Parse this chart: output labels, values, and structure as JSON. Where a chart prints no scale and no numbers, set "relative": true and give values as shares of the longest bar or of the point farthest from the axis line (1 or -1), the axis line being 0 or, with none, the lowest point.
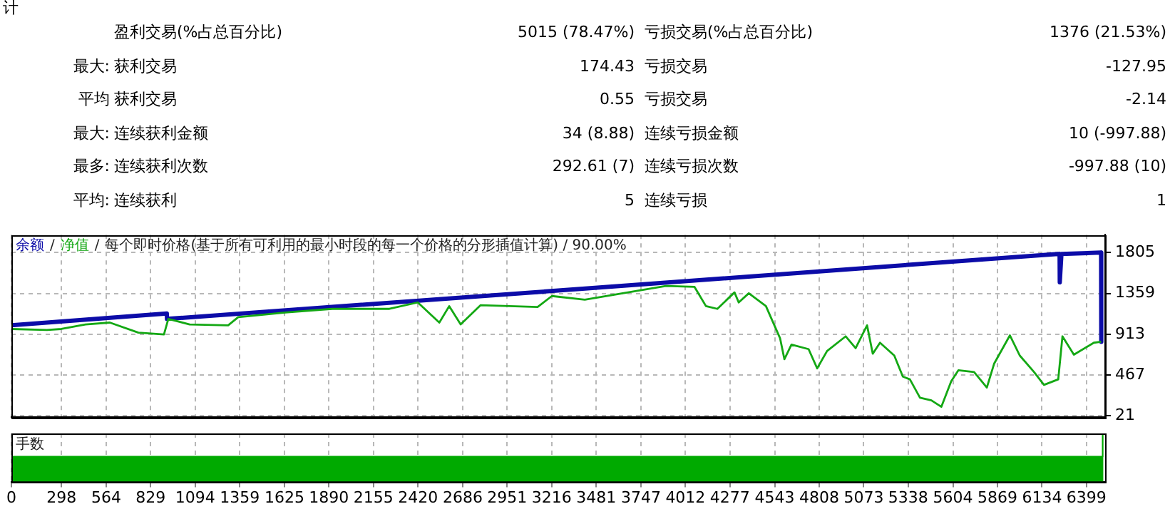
{
  "chart_data": [
    {
      "type": "other",
      "annotations": [
        "计",
        "盈利交易(%占总百分比)",
        "5015 (78.47%)",
        "亏损交易(%占总百分比)",
        "1376 (21.53%)",
        "最大:",
        "获利交易",
        "174.43",
        "亏损交易",
        "-127.95",
        "平均",
        "获利交易",
        "0.55",
        "亏损交易",
        "-2.14",
        "最大:",
        "连续获利金额",
        "34 (8.88)",
        "连续亏损金额",
        "10 (-997.88)",
        "最多:",
        "连续获利次数",
        "292.61 (7)",
        "连续亏损次数",
        "-997.88 (10)",
        "平均:",
        "连续获利",
        "5",
        "连续亏损",
        "1"
      ]
    },
    {
      "type": "line",
      "annotations": [
        "/",
        "/"
      ],
      "title": "每个即时价格(基于所有可利用的最小时段的每一个价格的分形插值计算) / 90.00%",
      "series": [
        {
          "name": "余额",
          "color": "#0c0ca8",
          "x": [
            0,
            925,
            926,
            3328,
            6230,
            6239,
            6240,
            6250,
            6486,
            6487
          ],
          "values": [
            1010,
            1140,
            1080,
            1400,
            1790,
            1790,
            1480,
            1790,
            1805,
            830
          ]
        },
        {
          "name": "净值",
          "color": "#14a814",
          "x": [
            0,
            212,
            297,
            441,
            586,
            756,
            908,
            934,
            1061,
            1290,
            1350,
            1630,
            1910,
            2250,
            2419,
            2547,
            2606,
            2674,
            2793,
            3132,
            3217,
            3413,
            3896,
            4066,
            4134,
            4202,
            4304,
            4329,
            4389,
            4491,
            4575,
            4601,
            4643,
            4745,
            4796,
            4855,
            4966,
            5025,
            5093,
            5127,
            5170,
            5255,
            5306,
            5348,
            5408,
            5476,
            5535,
            5594,
            5637,
            5730,
            5806,
            5849,
            5943,
            6002,
            6087,
            6146,
            6231,
            6256,
            6324,
            6443,
            6486
          ],
          "values": [
            970,
            960,
            970,
            1020,
            1040,
            930,
            910,
            1080,
            1020,
            1010,
            1100,
            1150,
            1190,
            1190,
            1260,
            1040,
            1220,
            1020,
            1230,
            1210,
            1330,
            1290,
            1440,
            1430,
            1220,
            1190,
            1370,
            1260,
            1360,
            1220,
            870,
            640,
            800,
            750,
            540,
            730,
            890,
            760,
            1010,
            700,
            820,
            680,
            450,
            420,
            220,
            190,
            120,
            400,
            520,
            500,
            330,
            590,
            900,
            680,
            500,
            360,
            420,
            890,
            690,
            820,
            830
          ]
        }
      ],
      "xlim": [
        0,
        6510
      ],
      "xticks": [
        0,
        298,
        564,
        829,
        1094,
        1359,
        1625,
        1890,
        2155,
        2420,
        2686,
        2951,
        3216,
        3481,
        3747,
        4012,
        4277,
        4543,
        4808,
        5073,
        5338,
        5604,
        5869,
        6134,
        6399
      ],
      "ylim": [
        10,
        2000
      ],
      "yticks": [
        21,
        467,
        913,
        1359,
        1805
      ],
      "tick_labels": "y",
      "grid": true,
      "legend": "top left",
      "marker": "none"
    },
    {
      "type": "area",
      "title": "手数",
      "relative": true,
      "series": [
        {
          "color": "#00aa00",
          "x": [
            0,
            6495,
            6496,
            6500
          ],
          "values": [
            0.52,
            0.52,
            1,
            1
          ]
        }
      ],
      "xlim": [
        0,
        6510
      ],
      "xticks": [
        0,
        298,
        564,
        829,
        1094,
        1359,
        1625,
        1890,
        2155,
        2420,
        2686,
        2951,
        3216,
        3481,
        3747,
        4012,
        4277,
        4543,
        4808,
        5073,
        5338,
        5604,
        5869,
        6134,
        6399
      ],
      "tick_labels": "x",
      "grid": "x"
    }
  ]
}
